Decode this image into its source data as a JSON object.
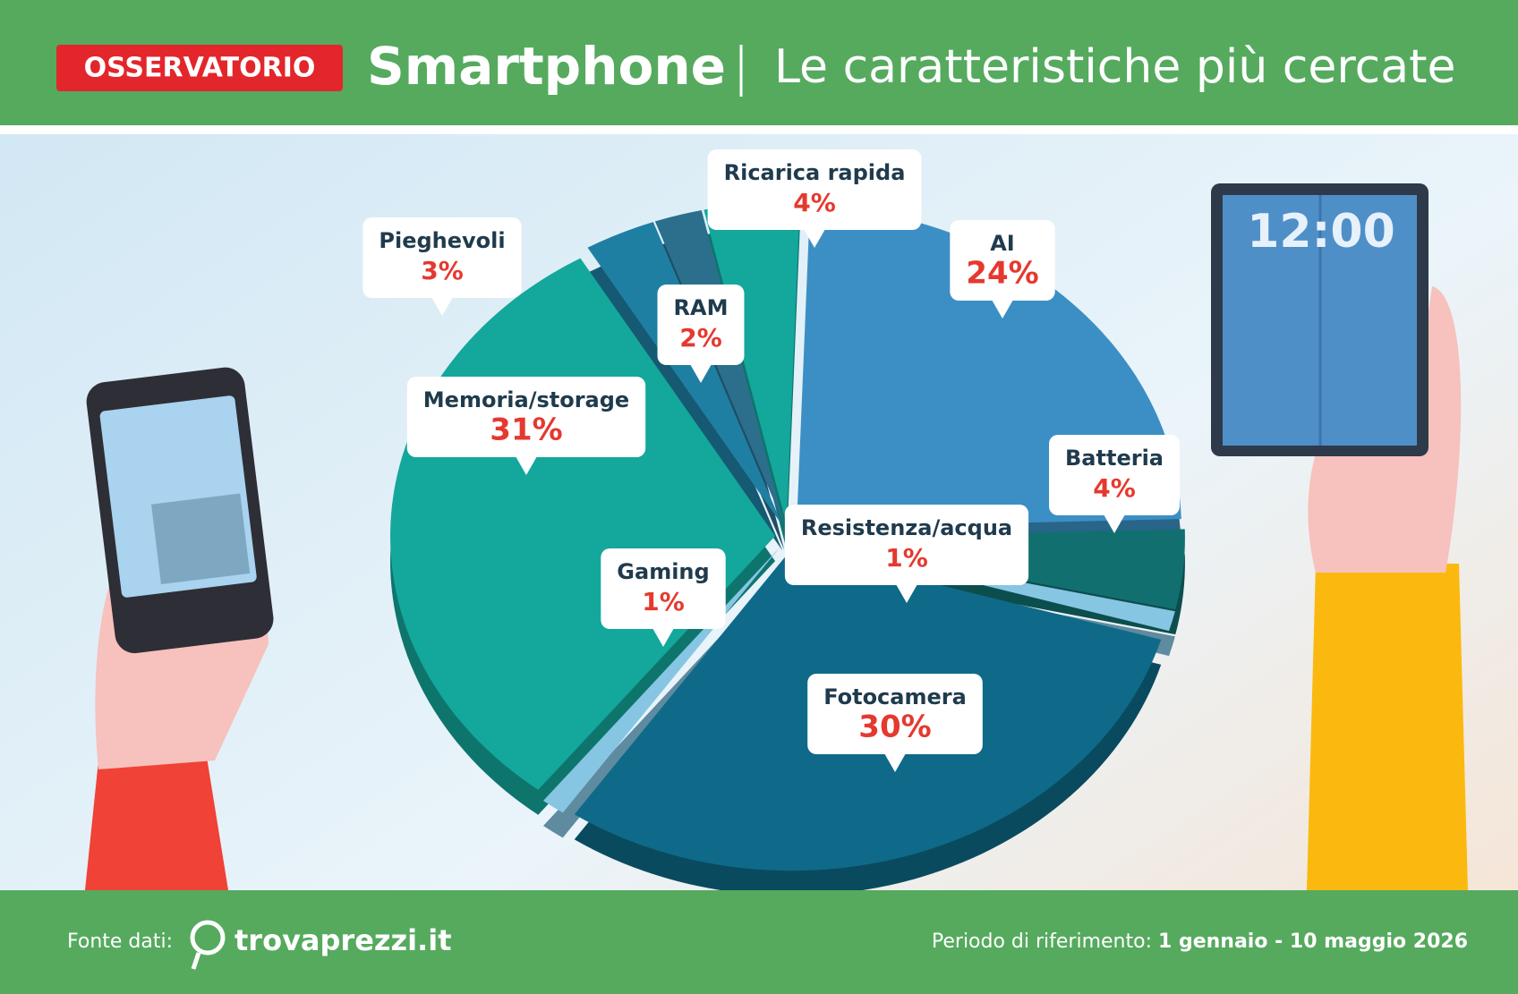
{
  "badge": "OSSERVATORIO",
  "footer": {
    "source_label": "Fonte dati:",
    "source": "trovaprezzi.it",
    "period_label": "Periodo di riferimento:",
    "period": "1 gennaio - 10 maggio 2026"
  },
  "chart_data": {
    "type": "pie",
    "title": "Smartphone",
    "subtitle": "Le caratteristiche più cercate",
    "categories": [
      "AI",
      "Batteria",
      "Resistenza/acqua",
      "Fotocamera",
      "Gaming",
      "Memoria/storage",
      "Pieghevoli",
      "RAM",
      "Ricarica rapida"
    ],
    "values": [
      24,
      4,
      1,
      30,
      1,
      31,
      3,
      2,
      4
    ],
    "value_labels": [
      "24%",
      "4%",
      "1%",
      "30%",
      "1%",
      "31%",
      "3%",
      "2%",
      "4%"
    ],
    "colors": [
      "#3b8fc4",
      "#11706f",
      "#86c6e3",
      "#0e6a88",
      "#86c6e3",
      "#14a79c",
      "#1f7fa3",
      "#2c6f8c",
      "#14a79c"
    ]
  }
}
